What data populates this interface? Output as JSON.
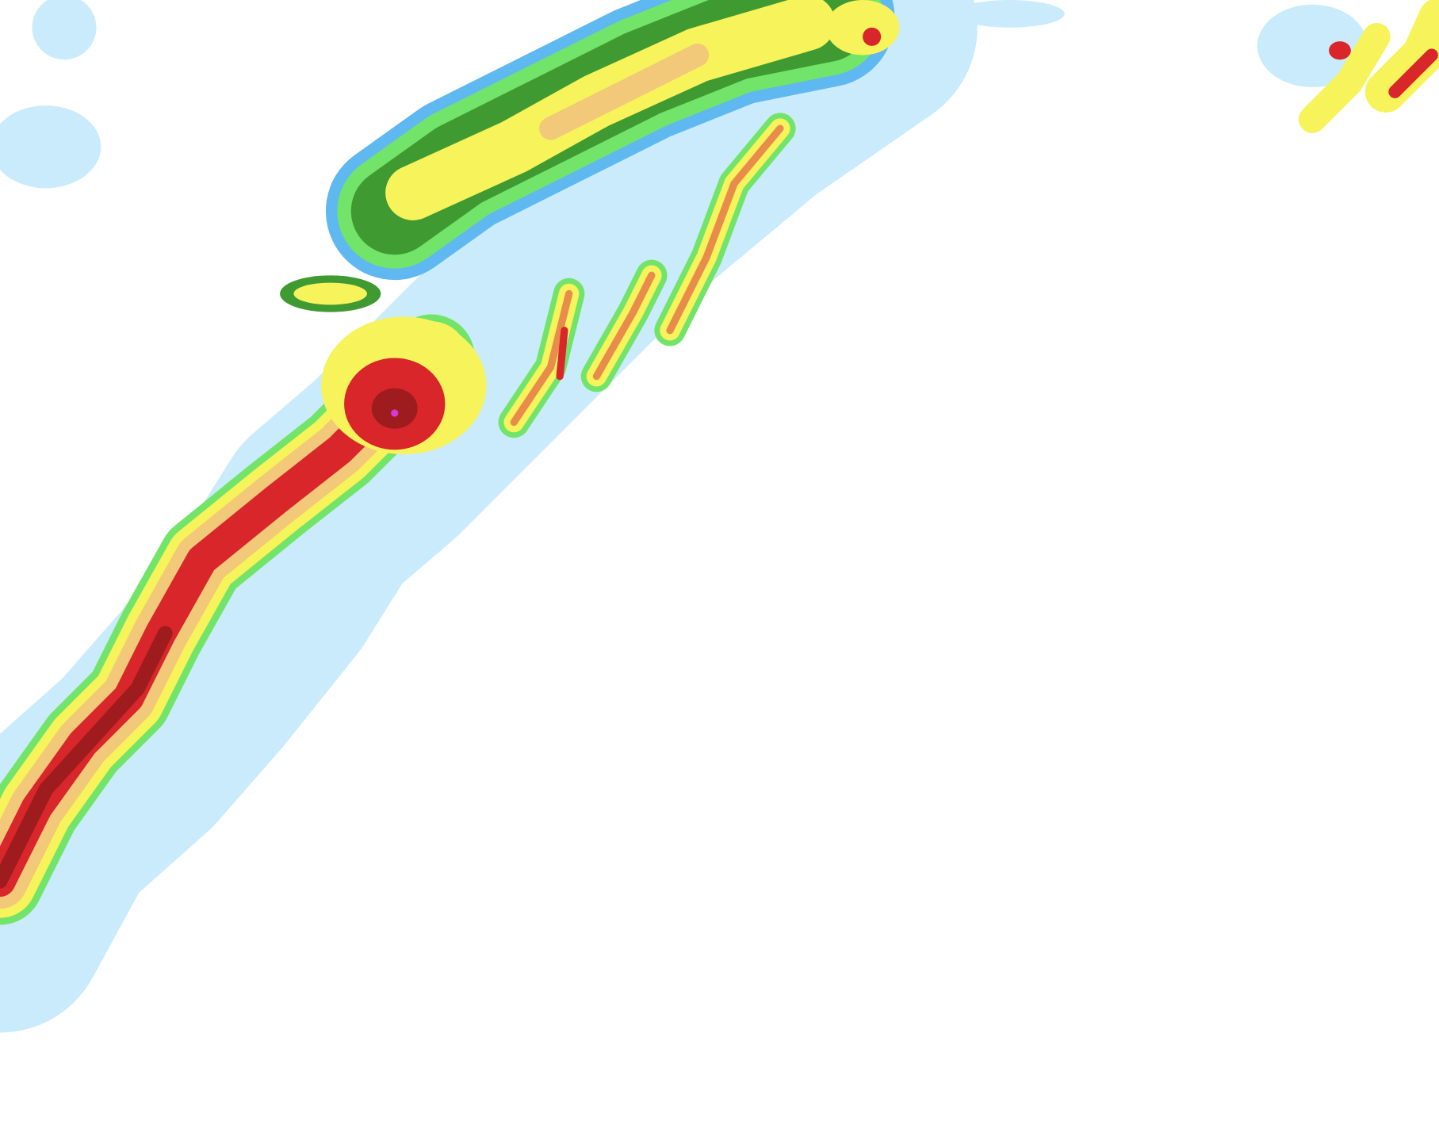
{
  "radar": {
    "palette": {
      "very_light": "#c9ebfc",
      "light": "#5fb8f0",
      "light_moderate": "#72e46a",
      "moderate": "#3f9a32",
      "moderate_heavy": "#f7f35a",
      "heavy": "#f2c879",
      "heavier": "#e88c4c",
      "very_heavy": "#d8262a",
      "intense": "#9e1b1e",
      "extreme": "#d43ad8"
    }
  }
}
